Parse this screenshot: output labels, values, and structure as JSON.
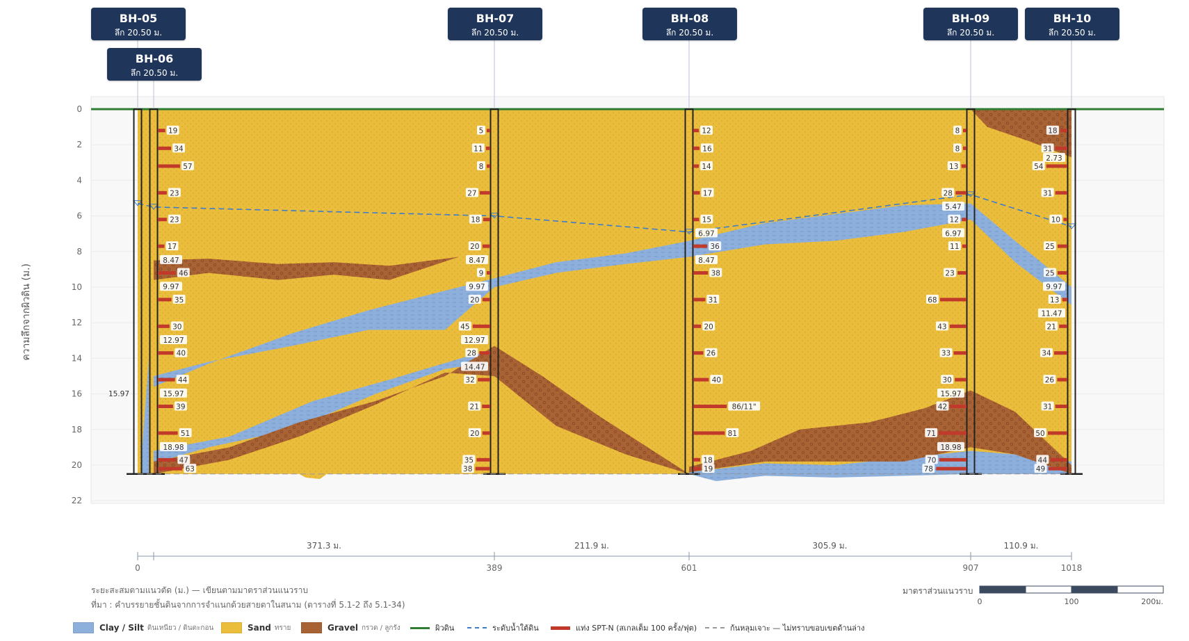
{
  "colors": {
    "sand": "#ebbd3c",
    "clay": "#8dafdc",
    "gravel": "#a86234",
    "ground": "#2e7d32",
    "water": "#3d7cc9",
    "spt": "#c0392b",
    "tag_bg": "#1f3559"
  },
  "axis": {
    "ylabel": "ความลึกจากผิวดิน (ม.)",
    "yticks": [
      0,
      2,
      4,
      6,
      8,
      10,
      12,
      14,
      16,
      18,
      20,
      22
    ],
    "ylim": [
      0,
      22
    ],
    "xticks": [
      "0",
      "389",
      "601",
      "907",
      "1018"
    ],
    "spacings": [
      "371.3 ม.",
      "211.9 ม.",
      "305.9 ม.",
      "110.9 ม."
    ]
  },
  "boreholes": [
    {
      "name": "BH-05",
      "depth_label": "ลึก 20.50 ม.",
      "chainage": 0,
      "total_depth": 20.5
    },
    {
      "name": "BH-06",
      "depth_label": "ลึก 20.50 ม.",
      "chainage": 18,
      "total_depth": 20.5
    },
    {
      "name": "BH-07",
      "depth_label": "ลึก 20.50 ม.",
      "chainage": 389,
      "total_depth": 20.5
    },
    {
      "name": "BH-08",
      "depth_label": "ลึก 20.50 ม.",
      "chainage": 601,
      "total_depth": 20.5
    },
    {
      "name": "BH-09",
      "depth_label": "ลึก 20.50 ม.",
      "chainage": 907,
      "total_depth": 20.5
    },
    {
      "name": "BH-10",
      "depth_label": "ลึก 20.50 ม.",
      "chainage": 1018,
      "total_depth": 20.5
    }
  ],
  "spt_left": [
    {
      "bh": "BH-06",
      "items": [
        {
          "d": 1.2,
          "n": "19"
        },
        {
          "d": 2.2,
          "n": "34"
        },
        {
          "d": 3.2,
          "n": "57"
        },
        {
          "d": 4.7,
          "n": "23"
        },
        {
          "d": 6.2,
          "n": "23"
        },
        {
          "d": 7.7,
          "n": "17"
        },
        {
          "d": 8.47,
          "n": "8.47"
        },
        {
          "d": 9.2,
          "n": "46"
        },
        {
          "d": 9.97,
          "n": "9.97"
        },
        {
          "d": 10.7,
          "n": "35"
        },
        {
          "d": 12.2,
          "n": "30"
        },
        {
          "d": 12.97,
          "n": "12.97"
        },
        {
          "d": 13.7,
          "n": "40"
        },
        {
          "d": 15.2,
          "n": "44"
        },
        {
          "d": 15.97,
          "n": "15.97"
        },
        {
          "d": 16.7,
          "n": "39"
        },
        {
          "d": 18.2,
          "n": "51"
        },
        {
          "d": 18.98,
          "n": "18.98"
        },
        {
          "d": 19.7,
          "n": "47"
        },
        {
          "d": 20.2,
          "n": "63"
        }
      ]
    },
    {
      "bh": "BH-08",
      "items": [
        {
          "d": 1.2,
          "n": "12"
        },
        {
          "d": 2.2,
          "n": "16"
        },
        {
          "d": 3.2,
          "n": "14"
        },
        {
          "d": 4.7,
          "n": "17"
        },
        {
          "d": 6.2,
          "n": "15"
        },
        {
          "d": 6.97,
          "n": "6.97"
        },
        {
          "d": 7.7,
          "n": "36"
        },
        {
          "d": 8.47,
          "n": "8.47"
        },
        {
          "d": 9.2,
          "n": "38"
        },
        {
          "d": 10.7,
          "n": "31"
        },
        {
          "d": 12.2,
          "n": "20"
        },
        {
          "d": 13.7,
          "n": "26"
        },
        {
          "d": 15.2,
          "n": "40"
        },
        {
          "d": 16.7,
          "n": "86/11\""
        },
        {
          "d": 18.2,
          "n": "81"
        },
        {
          "d": 19.7,
          "n": "18"
        },
        {
          "d": 20.2,
          "n": "19"
        }
      ]
    }
  ],
  "spt_right": [
    {
      "bh": "BH-07",
      "items": [
        {
          "d": 1.2,
          "n": "5"
        },
        {
          "d": 2.2,
          "n": "11"
        },
        {
          "d": 3.2,
          "n": "8"
        },
        {
          "d": 4.7,
          "n": "27"
        },
        {
          "d": 6.2,
          "n": "18"
        },
        {
          "d": 7.7,
          "n": "20"
        },
        {
          "d": 8.47,
          "n": "8.47"
        },
        {
          "d": 9.2,
          "n": "9"
        },
        {
          "d": 9.97,
          "n": "9.97"
        },
        {
          "d": 10.7,
          "n": "20"
        },
        {
          "d": 12.2,
          "n": "45"
        },
        {
          "d": 12.97,
          "n": "12.97"
        },
        {
          "d": 13.7,
          "n": "28"
        },
        {
          "d": 14.47,
          "n": "14.47"
        },
        {
          "d": 15.2,
          "n": "32"
        },
        {
          "d": 16.7,
          "n": "21"
        },
        {
          "d": 18.2,
          "n": "20"
        },
        {
          "d": 19.7,
          "n": "35"
        },
        {
          "d": 20.2,
          "n": "38"
        }
      ]
    },
    {
      "bh": "BH-09",
      "items": [
        {
          "d": 1.2,
          "n": "8"
        },
        {
          "d": 2.2,
          "n": "8"
        },
        {
          "d": 3.2,
          "n": "13"
        },
        {
          "d": 4.7,
          "n": "28"
        },
        {
          "d": 5.47,
          "n": "5.47"
        },
        {
          "d": 6.2,
          "n": "12"
        },
        {
          "d": 6.97,
          "n": "6.97"
        },
        {
          "d": 7.7,
          "n": "11"
        },
        {
          "d": 9.2,
          "n": "23"
        },
        {
          "d": 10.7,
          "n": "68"
        },
        {
          "d": 12.2,
          "n": "43"
        },
        {
          "d": 13.7,
          "n": "33"
        },
        {
          "d": 15.2,
          "n": "30"
        },
        {
          "d": 15.97,
          "n": "15.97"
        },
        {
          "d": 16.7,
          "n": "42"
        },
        {
          "d": 18.2,
          "n": "71"
        },
        {
          "d": 18.98,
          "n": "18.98"
        },
        {
          "d": 19.7,
          "n": "70"
        },
        {
          "d": 20.2,
          "n": "78"
        }
      ]
    },
    {
      "bh": "BH-10",
      "items": [
        {
          "d": 1.2,
          "n": "18"
        },
        {
          "d": 2.2,
          "n": "31"
        },
        {
          "d": 2.73,
          "n": "2.73"
        },
        {
          "d": 3.2,
          "n": "54"
        },
        {
          "d": 4.7,
          "n": "31"
        },
        {
          "d": 6.2,
          "n": "10"
        },
        {
          "d": 7.7,
          "n": "25"
        },
        {
          "d": 9.2,
          "n": "25"
        },
        {
          "d": 9.97,
          "n": "9.97"
        },
        {
          "d": 10.7,
          "n": "13"
        },
        {
          "d": 11.47,
          "n": "11.47"
        },
        {
          "d": 12.2,
          "n": "21"
        },
        {
          "d": 13.7,
          "n": "34"
        },
        {
          "d": 15.2,
          "n": "26"
        },
        {
          "d": 16.7,
          "n": "31"
        },
        {
          "d": 18.2,
          "n": "50"
        },
        {
          "d": 19.7,
          "n": "44"
        },
        {
          "d": 20.2,
          "n": "49"
        }
      ]
    }
  ],
  "bh05_marker": "15.97",
  "notes": {
    "line1": "ระยะสะสมตามแนวตัด (ม.) — เขียนตามมาตราส่วนแนวราบ",
    "line2": "ที่มา : คำบรรยายชั้นดินจากการจำแนกด้วยสายตาในสนาม (ตารางที่ 5.1-2 ถึง 5.1-34)"
  },
  "scalebar": {
    "label": "มาตราส่วนแนวราบ",
    "ticks": [
      "0",
      "100",
      "200ม."
    ]
  },
  "legend": [
    {
      "key": "clay",
      "main": "Clay / Silt",
      "sub": "ดินเหนียว / ดินตะกอน"
    },
    {
      "key": "sand",
      "main": "Sand",
      "sub": "ทราย"
    },
    {
      "key": "gravel",
      "main": "Gravel",
      "sub": "กรวด / ลูกรัง"
    },
    {
      "key": "ground",
      "main": "ผิวดิน",
      "sub": ""
    },
    {
      "key": "water",
      "main": "ระดับน้ำใต้ดิน",
      "sub": ""
    },
    {
      "key": "spt",
      "main": "แท่ง SPT-N (สเกลเต็ม 100 ครั้ง/ฟุต)",
      "sub": ""
    },
    {
      "key": "bottom",
      "main": "ก้นหลุมเจาะ — ไม่ทราบขอบเขตด้านล่าง",
      "sub": ""
    }
  ]
}
